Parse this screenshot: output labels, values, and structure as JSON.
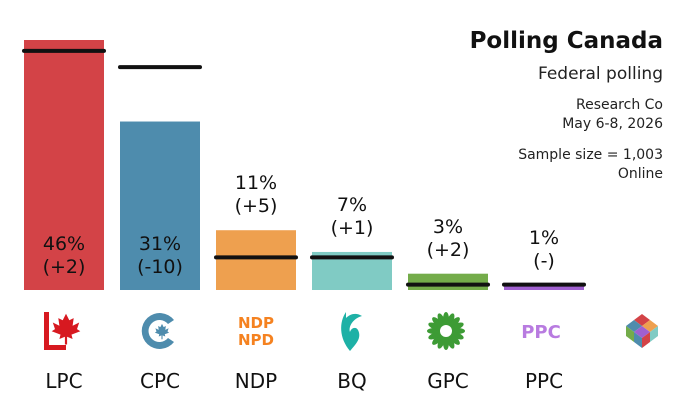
{
  "header": {
    "title": "Polling Canada",
    "subtitle": "Federal polling",
    "pollster": "Research Co",
    "dates": "May 6-8, 2026",
    "sample_size": "Sample size = 1,003",
    "method": "Online"
  },
  "chart_data": {
    "type": "bar",
    "title": "Polling Canada",
    "subtitle": "Federal polling",
    "xlabel": "",
    "ylabel": "",
    "ylim": [
      0,
      50
    ],
    "grid": false,
    "legend": "none",
    "categories": [
      "LPC",
      "CPC",
      "NDP",
      "BQ",
      "GPC",
      "PPC"
    ],
    "values": [
      46,
      31,
      11,
      7,
      3,
      1
    ],
    "previous_values": [
      44,
      41,
      6,
      6,
      1,
      1
    ],
    "value_labels": [
      "46%",
      "31%",
      "11%",
      "7%",
      "3%",
      "1%"
    ],
    "change_labels": [
      "(+2)",
      "(-10)",
      "(+5)",
      "(+1)",
      "(+2)",
      "(-)"
    ],
    "colors": [
      "#D34347",
      "#4E8CAD",
      "#EEA04F",
      "#80CBC4",
      "#74AC4A",
      "#A060D0"
    ],
    "previous_marker_color": "#111111"
  },
  "logos": [
    "lpc-logo",
    "cpc-logo",
    "ndp-logo",
    "bq-logo",
    "gpc-logo",
    "ppc-logo",
    "polling-canada-logo"
  ],
  "logo_text": {
    "ndp": "NDP",
    "npd": "NPD",
    "ppc": "PPC"
  }
}
